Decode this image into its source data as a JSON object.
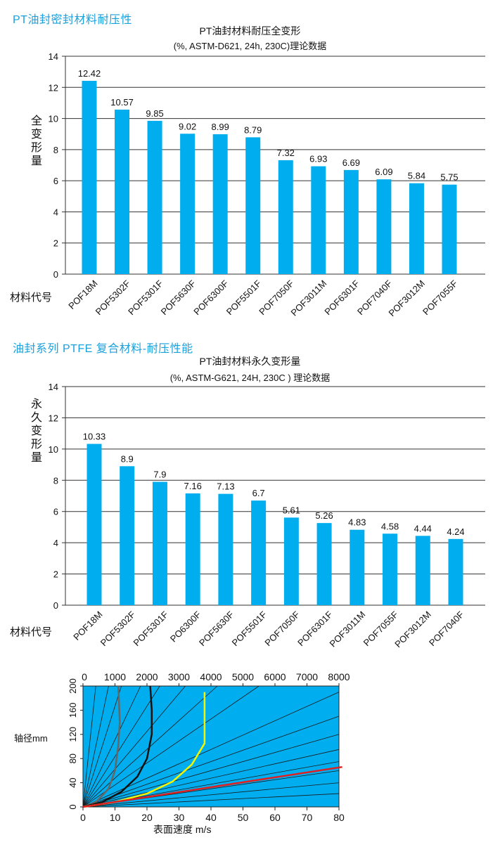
{
  "section1_title": "PT油封密封材料耐压性",
  "section2_title": "油封系列 PTFE 复合材料-耐压性能",
  "chart_data": [
    {
      "type": "bar",
      "title": "PT油封材料耐压全变形",
      "subtitle": "(%, ASTM-D621, 24h, 230C)理论数据",
      "ylabel": "全变形量",
      "xlabel": "材料代号",
      "ylim": [
        0,
        14
      ],
      "yticks": [
        0,
        2,
        4,
        6,
        8,
        10,
        12,
        14
      ],
      "categories": [
        "POF18M",
        "POF5302F",
        "POF5301F",
        "POF5630F",
        "POF6300F",
        "POF5501F",
        "POF7050F",
        "POF3011M",
        "POF6301F",
        "POF7040F",
        "POF3012M",
        "POF7055F"
      ],
      "values": [
        12.42,
        10.57,
        9.85,
        9.02,
        8.99,
        8.79,
        7.32,
        6.93,
        6.69,
        6.09,
        5.84,
        5.75
      ],
      "color": "#00aeef"
    },
    {
      "type": "bar",
      "title": "PT油封材料永久变形量",
      "subtitle": "(%, ASTM-G621, 24H, 230C ) 理论数据",
      "ylabel": "永久变形量",
      "xlabel": "材料代号",
      "ylim": [
        0,
        14
      ],
      "yticks": [
        0,
        2,
        4,
        6,
        8,
        10,
        12,
        14
      ],
      "categories": [
        "POF18M",
        "POF5302F",
        "POF5301F",
        "PO6300F",
        "POF5630F",
        "POF5501F",
        "POF7050F",
        "POF6301F",
        "POF3011M",
        "POF7055F",
        "POF3012M",
        "POF7040F"
      ],
      "values": [
        10.33,
        8.9,
        7.9,
        7.16,
        7.13,
        6.7,
        5.61,
        5.26,
        4.83,
        4.58,
        4.44,
        4.24
      ],
      "color": "#00aeef"
    },
    {
      "type": "line",
      "xlabel": "表面速度 m/s",
      "ylabel": "轴径mm",
      "xlim": [
        0,
        80
      ],
      "xticks": [
        0,
        10,
        20,
        30,
        40,
        50,
        60,
        70,
        80
      ],
      "ylim": [
        0,
        200
      ],
      "yticks": [
        0,
        40,
        80,
        120,
        160,
        200
      ],
      "top_ticks": [
        0,
        1000,
        2000,
        3000,
        4000,
        5000,
        6000,
        7000,
        8000
      ],
      "background": "#00aeef",
      "series": [
        {
          "color": "#666666",
          "points": [
            [
              0,
              0
            ],
            [
              4,
              8
            ],
            [
              8,
              30
            ],
            [
              10,
              60
            ],
            [
              11,
              100
            ],
            [
              11.5,
              140
            ],
            [
              11.2,
              180
            ],
            [
              11,
              200
            ]
          ]
        },
        {
          "color": "#111111",
          "points": [
            [
              0,
              0
            ],
            [
              6,
              8
            ],
            [
              12,
              25
            ],
            [
              17,
              50
            ],
            [
              20,
              80
            ],
            [
              21.5,
              120
            ],
            [
              21.5,
              160
            ],
            [
              21,
              200
            ]
          ]
        },
        {
          "color": "#f4f400",
          "points": [
            [
              0,
              0
            ],
            [
              10,
              8
            ],
            [
              20,
              22
            ],
            [
              28,
              42
            ],
            [
              34,
              70
            ],
            [
              38,
              105
            ],
            [
              38,
              160
            ],
            [
              38,
              190
            ]
          ]
        },
        {
          "color": "#e02020",
          "points": [
            [
              0,
              0
            ],
            [
              81,
              66
            ]
          ]
        }
      ]
    }
  ]
}
